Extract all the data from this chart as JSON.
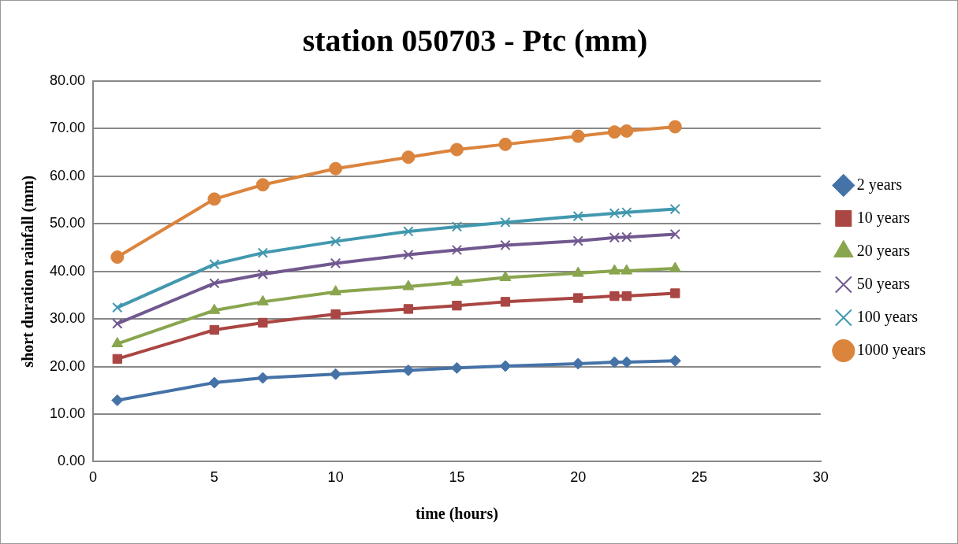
{
  "chart_data": {
    "type": "line",
    "title": "station 050703 - Ptc (mm)",
    "xlabel": "time (hours)",
    "ylabel": "short duration rainfall (mm)",
    "x": [
      1,
      5,
      7,
      10,
      13,
      15,
      17,
      20,
      21.5,
      22,
      24
    ],
    "series": [
      {
        "name": "2 years",
        "color": "#4572a7",
        "marker": "diamond",
        "values": [
          12.9,
          16.6,
          17.6,
          18.4,
          19.2,
          19.7,
          20.1,
          20.6,
          20.9,
          20.9,
          21.2
        ]
      },
      {
        "name": "10 years",
        "color": "#aa4643",
        "marker": "square",
        "values": [
          21.6,
          27.7,
          29.2,
          31.0,
          32.1,
          32.8,
          33.6,
          34.4,
          34.8,
          34.8,
          35.4
        ]
      },
      {
        "name": "20 years",
        "color": "#89a54e",
        "marker": "triangle",
        "values": [
          24.8,
          31.8,
          33.6,
          35.7,
          36.8,
          37.7,
          38.7,
          39.6,
          40.1,
          40.1,
          40.6
        ]
      },
      {
        "name": "50 years",
        "color": "#71588f",
        "marker": "cross",
        "values": [
          29.0,
          37.5,
          39.4,
          41.7,
          43.5,
          44.5,
          45.5,
          46.4,
          47.1,
          47.2,
          47.8
        ]
      },
      {
        "name": "100 years",
        "color": "#4198af",
        "marker": "cross",
        "values": [
          32.4,
          41.5,
          43.9,
          46.3,
          48.4,
          49.4,
          50.3,
          51.6,
          52.2,
          52.4,
          53.1
        ]
      },
      {
        "name": "1000 years",
        "color": "#db843d",
        "marker": "circle",
        "values": [
          43.0,
          55.2,
          58.2,
          61.6,
          64.0,
          65.6,
          66.7,
          68.4,
          69.3,
          69.5,
          70.4
        ]
      }
    ],
    "xlim": [
      0,
      30
    ],
    "xticks": [
      0,
      5,
      10,
      15,
      20,
      25,
      30
    ],
    "ylim": [
      0,
      80
    ],
    "yticks": [
      {
        "value": 0,
        "label": "0.00"
      },
      {
        "value": 10,
        "label": "10.00"
      },
      {
        "value": 20,
        "label": "20.00"
      },
      {
        "value": 30,
        "label": "30.00"
      },
      {
        "value": 40,
        "label": "40.00"
      },
      {
        "value": 50,
        "label": "50.00"
      },
      {
        "value": 60,
        "label": "60.00"
      },
      {
        "value": 70,
        "label": "70.00"
      },
      {
        "value": 80,
        "label": "80.00"
      }
    ],
    "grid": "y",
    "legend": "right",
    "line_style": "solid"
  }
}
